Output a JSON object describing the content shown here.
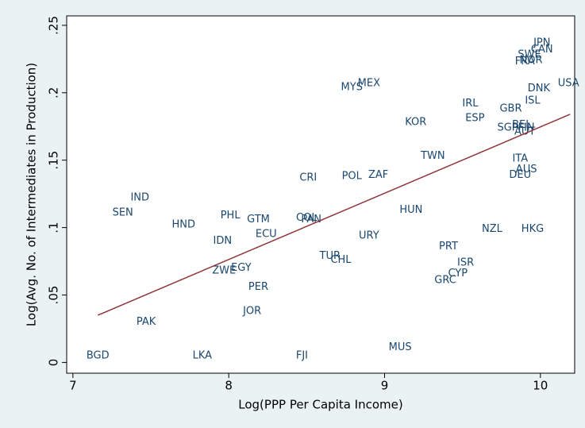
{
  "chart_data": {
    "type": "scatter",
    "x_label": "Log(PPP Per Capita Income)",
    "y_label": "Log(Avg. No. of Intermediates in Production)",
    "xlim": [
      6.96,
      10.22
    ],
    "ylim": [
      -0.008,
      0.257
    ],
    "xticks": [
      7,
      8,
      9,
      10
    ],
    "yticks": [
      0,
      {
        "value": 0.05,
        "label": ".05"
      },
      {
        "value": 0.1,
        "label": ".1"
      },
      {
        "value": 0.15,
        "label": ".15"
      },
      {
        "value": 0.2,
        "label": ".2"
      },
      {
        "value": 0.25,
        "label": ".25"
      }
    ],
    "points": {
      "color": "#1a476f",
      "labels": [
        "JPN",
        "CAN",
        "SWE",
        "NOR",
        "FRA",
        "USA",
        "DNK",
        "ISL",
        "MYS",
        "MEX",
        "IRL",
        "GBR",
        "KOR",
        "ESP",
        "BEL",
        "SGP",
        "FIN",
        "AUT",
        "TWN",
        "ITA",
        "AUS",
        "DEU",
        "CRI",
        "POL",
        "ZAF",
        "IND",
        "SEN",
        "HUN",
        "PHL",
        "GTM",
        "COL",
        "PAN",
        "HND",
        "NZL",
        "HKG",
        "ECU",
        "URY",
        "IDN",
        "PRT",
        "TUR",
        "CHL",
        "ISR",
        "EGY",
        "ZWE",
        "CYP",
        "GRC",
        "PER",
        "JOR",
        "PAK",
        "MUS",
        "BGD",
        "LKA",
        "FJI"
      ],
      "x": [
        10.01,
        10.01,
        9.93,
        9.94,
        9.9,
        10.18,
        9.99,
        9.95,
        8.79,
        8.9,
        9.55,
        9.81,
        9.2,
        9.58,
        9.88,
        9.79,
        9.91,
        9.9,
        9.31,
        9.87,
        9.91,
        9.87,
        8.51,
        8.79,
        8.96,
        7.43,
        7.32,
        9.17,
        8.01,
        8.19,
        8.5,
        8.53,
        7.71,
        9.69,
        9.95,
        8.24,
        8.9,
        7.96,
        9.41,
        8.65,
        8.72,
        9.52,
        8.08,
        7.97,
        9.47,
        9.39,
        8.19,
        8.15,
        7.47,
        9.1,
        7.16,
        7.83,
        8.47
      ],
      "y": [
        0.237,
        0.232,
        0.228,
        0.224,
        0.223,
        0.207,
        0.203,
        0.194,
        0.204,
        0.207,
        0.192,
        0.188,
        0.178,
        0.181,
        0.176,
        0.174,
        0.174,
        0.171,
        0.153,
        0.151,
        0.143,
        0.139,
        0.137,
        0.138,
        0.139,
        0.122,
        0.111,
        0.113,
        0.109,
        0.106,
        0.107,
        0.106,
        0.102,
        0.099,
        0.099,
        0.095,
        0.094,
        0.09,
        0.086,
        0.079,
        0.076,
        0.074,
        0.07,
        0.068,
        0.066,
        0.061,
        0.056,
        0.038,
        0.03,
        0.011,
        0.005,
        0.005,
        0.005
      ]
    },
    "fit_line": {
      "color": "#90353b",
      "x": [
        7.16,
        10.19
      ],
      "y": [
        0.035,
        0.184
      ]
    }
  }
}
